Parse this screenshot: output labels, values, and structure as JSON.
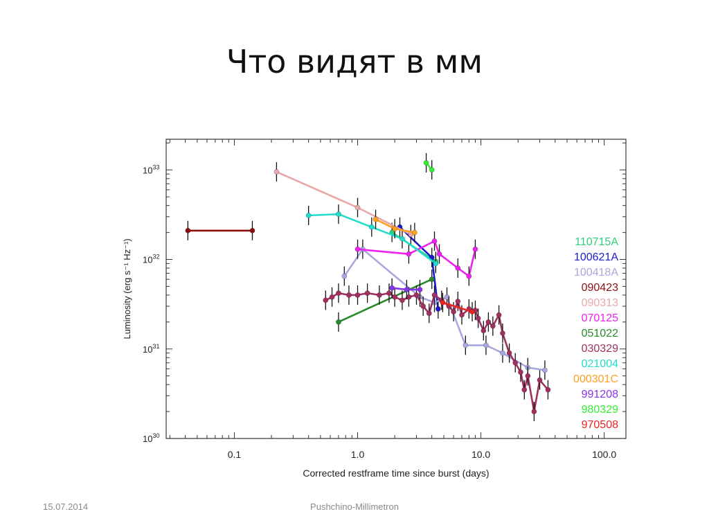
{
  "slide": {
    "title": "Что видят в мм",
    "footer_date": "15.07.2014",
    "footer_center": "Pushchino-Millimetron"
  },
  "chart_data": {
    "type": "scatter",
    "title": "",
    "xlabel": "Corrected restframe time since burst (days)",
    "ylabel": "Luminosity (erg s⁻¹ Hz⁻¹)",
    "xscale": "log",
    "yscale": "log",
    "xlim": [
      0.028,
      150
    ],
    "ylim": [
      1e+30,
      2.2e+33
    ],
    "x_ticks": [
      {
        "value": 0.1,
        "label": "0.1"
      },
      {
        "value": 1,
        "label": "1.0"
      },
      {
        "value": 10,
        "label": "10.0"
      },
      {
        "value": 100,
        "label": "100.0"
      }
    ],
    "y_ticks": [
      {
        "value": 1e+30,
        "base": "10",
        "exp": "30"
      },
      {
        "value": 1e+31,
        "base": "10",
        "exp": "31"
      },
      {
        "value": 1e+32,
        "base": "10",
        "exp": "32"
      },
      {
        "value": 1e+33,
        "base": "10",
        "exp": "33"
      }
    ],
    "grid": false,
    "legend_position": "right",
    "series": [
      {
        "name": "110715A",
        "color": "#2ecf7a",
        "points": [
          [
            1.9,
            2e+32
          ],
          [
            4.3,
            9.5e+31
          ]
        ]
      },
      {
        "name": "100621A",
        "color": "#1a1acc",
        "points": [
          [
            2.2,
            2.3e+32
          ],
          [
            4.0,
            1.05e+32
          ],
          [
            4.5,
            2.8e+31
          ]
        ]
      },
      {
        "name": "100418A",
        "color": "#a8a8e0",
        "points": [
          [
            0.78,
            6.5e+31
          ],
          [
            1.1,
            1.3e+32
          ],
          [
            3.2,
            3.8e+31
          ],
          [
            4.2,
            3.3e+31
          ],
          [
            5.3,
            3.8e+31
          ],
          [
            7.5,
            1.1e+31
          ],
          [
            11,
            1.1e+31
          ],
          [
            15,
            9e+30
          ],
          [
            24,
            6.2e+30
          ],
          [
            33,
            5.8e+30
          ]
        ]
      },
      {
        "name": "090423",
        "color": "#8b1010",
        "points": [
          [
            0.042,
            2.1e+32
          ],
          [
            0.14,
            2.1e+32
          ]
        ]
      },
      {
        "name": "090313",
        "color": "#e8a8a8",
        "points": [
          [
            0.22,
            9.5e+32
          ],
          [
            1.0,
            3.8e+32
          ],
          [
            2.7,
            1.9e+32
          ]
        ]
      },
      {
        "name": "070125",
        "color": "#ee22ee",
        "points": [
          [
            1.0,
            1.3e+32
          ],
          [
            2.6,
            1.15e+32
          ],
          [
            4.2,
            1.6e+32
          ],
          [
            4.6,
            1.15e+32
          ],
          [
            6.5,
            8e+31
          ],
          [
            8.0,
            6.5e+31
          ],
          [
            9.0,
            1.3e+32
          ]
        ]
      },
      {
        "name": "051022",
        "color": "#2a8a2a",
        "points": [
          [
            0.7,
            2e+31
          ],
          [
            4.0,
            6e+31
          ]
        ]
      },
      {
        "name": "030329",
        "color": "#a03060",
        "points": [
          [
            0.55,
            3.5e+31
          ],
          [
            0.62,
            3.8e+31
          ],
          [
            0.7,
            4.2e+31
          ],
          [
            0.85,
            4e+31
          ],
          [
            1.0,
            4e+31
          ],
          [
            1.2,
            4.2e+31
          ],
          [
            1.5,
            4e+31
          ],
          [
            1.8,
            4.2e+31
          ],
          [
            2.0,
            3.8e+31
          ],
          [
            2.3,
            3.5e+31
          ],
          [
            2.6,
            3.8e+31
          ],
          [
            3.0,
            4e+31
          ],
          [
            3.4,
            3e+31
          ],
          [
            3.8,
            2.5e+31
          ],
          [
            4.2,
            4e+31
          ],
          [
            4.8,
            3.5e+31
          ],
          [
            5.5,
            3e+31
          ],
          [
            6.0,
            2.6e+31
          ],
          [
            6.5,
            3.4e+31
          ],
          [
            7.0,
            2.4e+31
          ],
          [
            8.0,
            2.8e+31
          ],
          [
            9.0,
            2.7e+31
          ],
          [
            9.5,
            2.2e+31
          ],
          [
            10.5,
            1.6e+31
          ],
          [
            11.5,
            2e+31
          ],
          [
            12.5,
            1.8e+31
          ],
          [
            14,
            2.4e+31
          ],
          [
            15,
            1.5e+31
          ],
          [
            17,
            9e+30
          ],
          [
            19,
            7e+30
          ],
          [
            21,
            5.5e+30
          ],
          [
            22.5,
            3.5e+30
          ],
          [
            24,
            5e+30
          ],
          [
            27,
            2e+30
          ],
          [
            30,
            4.5e+30
          ],
          [
            35,
            3.5e+30
          ]
        ]
      },
      {
        "name": "021004",
        "color": "#22ddcc",
        "points": [
          [
            0.4,
            3.1e+32
          ],
          [
            0.7,
            3.2e+32
          ],
          [
            1.3,
            2.3e+32
          ],
          [
            2.3,
            1.7e+32
          ],
          [
            4.3,
            9e+31
          ]
        ]
      },
      {
        "name": "000301C",
        "color": "#ffa020",
        "points": [
          [
            1.4,
            2.8e+32
          ],
          [
            2.0,
            2.2e+32
          ],
          [
            2.9,
            2e+32
          ]
        ]
      },
      {
        "name": "991208",
        "color": "#8833ee",
        "points": [
          [
            1.9,
            4.8e+31
          ],
          [
            2.5,
            4.6e+31
          ],
          [
            3.2,
            4.6e+31
          ]
        ]
      },
      {
        "name": "980329",
        "color": "#33ee33",
        "points": [
          [
            3.6,
            1.2e+33
          ],
          [
            4.0,
            1e+33
          ]
        ]
      },
      {
        "name": "970508",
        "color": "#ee2222",
        "points": [
          [
            4.9,
            3.3e+31
          ],
          [
            8.5,
            2.6e+31
          ]
        ]
      }
    ]
  }
}
